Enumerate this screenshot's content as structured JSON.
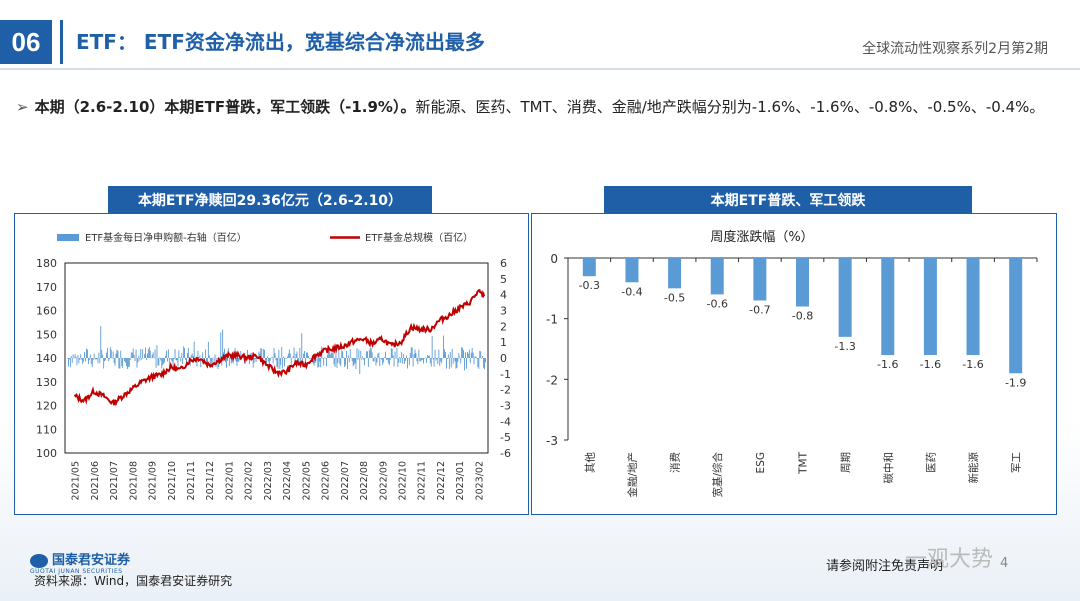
{
  "header": {
    "page_number": "06",
    "title": "ETF： ETF资金净流出，宽基综合净流出最多",
    "series_label": "全球流动性观察系列2月第2期"
  },
  "bullet": {
    "lead": "本期（2.6-2.10）本期ETF普跌，军工领跌（-1.9%）。",
    "rest": "新能源、医药、TMT、消费、金融/地产跌幅分别为-1.6%、-1.6%、-0.8%、-0.5%、-0.4%。"
  },
  "chart_left_title": "本期ETF净赎回29.36亿元（2.6-2.10）",
  "chart_right_title": "本期ETF普跌、军工领跌",
  "footer": {
    "logo_text": "国泰君安证券",
    "logo_sub": "GUOTAI JUNAN SECURITIES",
    "source": "资料来源：Wind，国泰君安证券研究",
    "disclaimer": "请参阅附注免责声明",
    "watermark": "一观大势",
    "page_no": "4"
  },
  "colors": {
    "accent": "#1f5fa8",
    "bar": "#5b9bd5",
    "line": "#c00000"
  },
  "chart_data": [
    {
      "type": "line",
      "legend": [
        "ETF基金每日净申购额-右轴（百亿）",
        "ETF基金总规模（百亿）"
      ],
      "legend_placement": "top",
      "x_ticks": [
        "2021/05",
        "2021/06",
        "2021/07",
        "2021/08",
        "2021/09",
        "2021/10",
        "2021/11",
        "2021/12",
        "2022/01",
        "2022/02",
        "2022/03",
        "2022/04",
        "2022/05",
        "2022/06",
        "2022/07",
        "2022/08",
        "2022/09",
        "2022/10",
        "2022/11",
        "2022/12",
        "2023/01",
        "2023/02"
      ],
      "ylim_left": [
        100,
        180
      ],
      "yticks_left": [
        100,
        110,
        120,
        130,
        140,
        150,
        160,
        170,
        180
      ],
      "ylim_right": [
        -6,
        6
      ],
      "yticks_right": [
        6,
        5,
        4,
        3,
        2,
        1,
        0,
        -1,
        -2,
        -3,
        -4,
        -5,
        -6
      ],
      "series": [
        {
          "name": "ETF基金总规模（百亿）",
          "axis": "left",
          "kind": "line",
          "anchors": [
            [
              0,
              124
            ],
            [
              0.5,
              122
            ],
            [
              1,
              126
            ],
            [
              1.5,
              124
            ],
            [
              2,
              121
            ],
            [
              2.5,
              124
            ],
            [
              3,
              127
            ],
            [
              3.5,
              130
            ],
            [
              4,
              132
            ],
            [
              4.5,
              133
            ],
            [
              5,
              136
            ],
            [
              5.5,
              135
            ],
            [
              6,
              139
            ],
            [
              6.5,
              140
            ],
            [
              7,
              137
            ],
            [
              7.5,
              139
            ],
            [
              8,
              141
            ],
            [
              8.5,
              141
            ],
            [
              9,
              140
            ],
            [
              9.5,
              141
            ],
            [
              10,
              137
            ],
            [
              10.5,
              134
            ],
            [
              11,
              134
            ],
            [
              11.5,
              138
            ],
            [
              12,
              137
            ],
            [
              12.5,
              141
            ],
            [
              13,
              143
            ],
            [
              13.5,
              144
            ],
            [
              14,
              145
            ],
            [
              14.5,
              147
            ],
            [
              15,
              148
            ],
            [
              15.5,
              146
            ],
            [
              16,
              148
            ],
            [
              16.5,
              145
            ],
            [
              17,
              147
            ],
            [
              17.5,
              153
            ],
            [
              18,
              152
            ],
            [
              18.5,
              152
            ],
            [
              19,
              156
            ],
            [
              19.5,
              158
            ],
            [
              20,
              161
            ],
            [
              20.5,
              163
            ],
            [
              21,
              168
            ],
            [
              21.3,
              166
            ]
          ]
        },
        {
          "name": "ETF基金每日净申购额-右轴（百亿）",
          "axis": "right",
          "kind": "bar",
          "note": "daily values mostly within ±1.5"
        }
      ]
    },
    {
      "type": "bar",
      "title": "周度涨跌幅（%）",
      "categories": [
        "其他",
        "金融/地产",
        "消费",
        "宽基/综合",
        "ESG",
        "TMT",
        "周期",
        "碳中和",
        "医药",
        "新能源",
        "军工"
      ],
      "values": [
        -0.3,
        -0.4,
        -0.5,
        -0.6,
        -0.7,
        -0.8,
        -1.3,
        -1.6,
        -1.6,
        -1.6,
        -1.9
      ],
      "ylim": [
        -3,
        0
      ],
      "yticks": [
        0,
        -1,
        -2,
        -3
      ]
    }
  ]
}
